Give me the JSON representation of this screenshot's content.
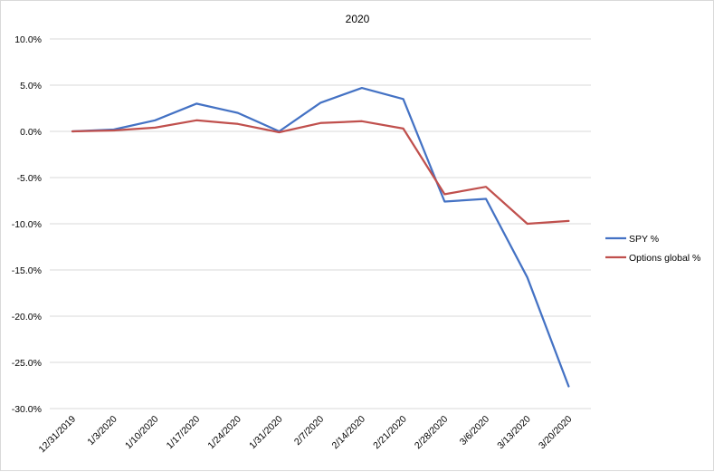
{
  "chart_data": {
    "type": "line",
    "title": "2020",
    "xlabel": "",
    "ylabel": "",
    "categories": [
      "12/31/2019",
      "1/3/2020",
      "1/10/2020",
      "1/17/2020",
      "1/24/2020",
      "1/31/2020",
      "2/7/2020",
      "2/14/2020",
      "2/21/2020",
      "2/28/2020",
      "3/6/2020",
      "3/13/2020",
      "3/20/2020"
    ],
    "series": [
      {
        "name": "SPY %",
        "color": "#4472C4",
        "values": [
          0.0,
          0.2,
          1.2,
          3.0,
          2.0,
          0.0,
          3.1,
          4.7,
          3.5,
          -7.6,
          -7.3,
          -15.8,
          -27.6
        ]
      },
      {
        "name": "Options global %",
        "color": "#C0504D",
        "values": [
          0.0,
          0.1,
          0.4,
          1.2,
          0.8,
          -0.1,
          0.9,
          1.1,
          0.3,
          -6.8,
          -6.0,
          -10.0,
          -9.7
        ]
      }
    ],
    "ylim": [
      -30,
      10
    ],
    "yticks": [
      10,
      5,
      0,
      -5,
      -10,
      -15,
      -20,
      -25,
      -30
    ],
    "ytick_labels": [
      "10.0%",
      "5.0%",
      "0.0%",
      "-5.0%",
      "-10.0%",
      "-15.0%",
      "-20.0%",
      "-25.0%",
      "-30.0%"
    ],
    "grid": true,
    "legend_position": "right",
    "gridline_color": "#d9d9d9"
  }
}
